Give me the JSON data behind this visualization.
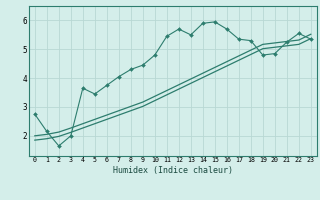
{
  "title": "",
  "xlabel": "Humidex (Indice chaleur)",
  "xlim": [
    -0.5,
    23.5
  ],
  "ylim": [
    1.3,
    6.5
  ],
  "yticks": [
    2,
    3,
    4,
    5,
    6
  ],
  "xticks": [
    0,
    1,
    2,
    3,
    4,
    5,
    6,
    7,
    8,
    9,
    10,
    11,
    12,
    13,
    14,
    15,
    16,
    17,
    18,
    19,
    20,
    21,
    22,
    23
  ],
  "bg_color": "#d4eeea",
  "line_color": "#2d7d6e",
  "grid_color": "#b8d8d4",
  "curve1_x": [
    0,
    1,
    2,
    3,
    4,
    5,
    6,
    7,
    8,
    9,
    10,
    11,
    12,
    13,
    14,
    15,
    16,
    17,
    18,
    19,
    20,
    21,
    22,
    23
  ],
  "curve1_y": [
    2.75,
    2.15,
    1.65,
    2.0,
    3.65,
    3.45,
    3.75,
    4.05,
    4.3,
    4.45,
    4.8,
    5.45,
    5.7,
    5.5,
    5.9,
    5.95,
    5.7,
    5.35,
    5.3,
    4.8,
    4.85,
    5.25,
    5.55,
    5.35
  ],
  "curve2_x": [
    0,
    1,
    2,
    3,
    4,
    5,
    6,
    7,
    8,
    9,
    10,
    11,
    12,
    13,
    14,
    15,
    16,
    17,
    18,
    19,
    20,
    21,
    22,
    23
  ],
  "curve2_y": [
    1.85,
    1.9,
    1.98,
    2.12,
    2.27,
    2.42,
    2.57,
    2.72,
    2.87,
    3.02,
    3.22,
    3.42,
    3.62,
    3.82,
    4.02,
    4.22,
    4.42,
    4.62,
    4.82,
    5.02,
    5.07,
    5.12,
    5.17,
    5.37
  ],
  "curve3_x": [
    0,
    1,
    2,
    3,
    4,
    5,
    6,
    7,
    8,
    9,
    10,
    11,
    12,
    13,
    14,
    15,
    16,
    17,
    18,
    19,
    20,
    21,
    22,
    23
  ],
  "curve3_y": [
    2.0,
    2.05,
    2.13,
    2.27,
    2.42,
    2.57,
    2.72,
    2.87,
    3.02,
    3.17,
    3.37,
    3.57,
    3.77,
    3.97,
    4.17,
    4.37,
    4.57,
    4.77,
    4.97,
    5.17,
    5.22,
    5.27,
    5.32,
    5.52
  ]
}
